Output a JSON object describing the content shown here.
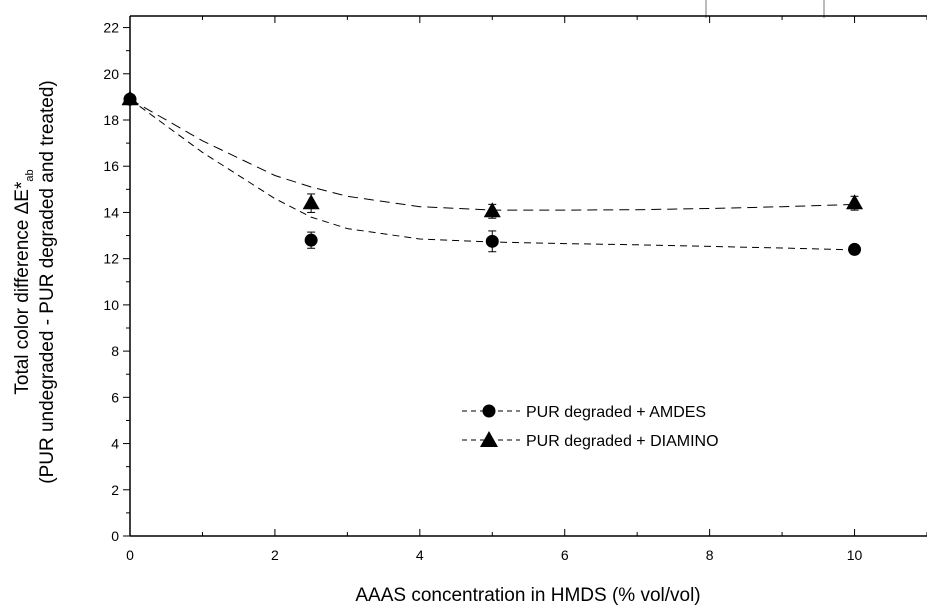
{
  "chart_data": {
    "type": "scatter",
    "xlabel": "AAAS concentration in HMDS (% vol/vol)",
    "ylabel": {
      "line1_prefix": "Total color difference ",
      "line1_symbol": "ΔE*",
      "line1_subscript": "ab",
      "line2": "(PUR undegraded - PUR degraded and treated)"
    },
    "xlim": [
      0,
      11
    ],
    "ylim": [
      0,
      22.5
    ],
    "xticks": [
      0,
      2,
      4,
      6,
      8,
      10
    ],
    "yticks": [
      0,
      2,
      4,
      6,
      8,
      10,
      12,
      14,
      16,
      18,
      20,
      22
    ],
    "grid": false,
    "legend_position": "lower-right",
    "series": [
      {
        "name": "PUR degraded + AMDES",
        "marker": "circle",
        "line_style": "dashed",
        "x": [
          0,
          2.5,
          5,
          10
        ],
        "y": [
          18.9,
          12.8,
          12.75,
          12.4
        ],
        "err": [
          0.2,
          0.35,
          0.45,
          0.2
        ],
        "fit": [
          [
            0,
            18.9
          ],
          [
            1,
            16.6
          ],
          [
            2,
            14.6
          ],
          [
            2.5,
            13.8
          ],
          [
            3,
            13.3
          ],
          [
            4,
            12.85
          ],
          [
            5,
            12.72
          ],
          [
            6,
            12.65
          ],
          [
            7,
            12.6
          ],
          [
            8,
            12.53
          ],
          [
            9,
            12.46
          ],
          [
            10,
            12.38
          ]
        ]
      },
      {
        "name": "PUR degraded + DIAMINO",
        "marker": "triangle",
        "line_style": "dashed",
        "x": [
          0,
          2.5,
          5,
          10
        ],
        "y": [
          18.9,
          14.4,
          14.05,
          14.4
        ],
        "err": [
          0.2,
          0.4,
          0.3,
          0.3
        ],
        "fit": [
          [
            0,
            18.9
          ],
          [
            1,
            17.1
          ],
          [
            2,
            15.6
          ],
          [
            2.5,
            15.1
          ],
          [
            3,
            14.7
          ],
          [
            4,
            14.25
          ],
          [
            5,
            14.1
          ],
          [
            6,
            14.1
          ],
          [
            7,
            14.12
          ],
          [
            8,
            14.17
          ],
          [
            9,
            14.25
          ],
          [
            10,
            14.35
          ]
        ]
      }
    ]
  },
  "colors": {
    "ink": "#000000",
    "background": "#ffffff",
    "corner_marks": "#bbbbbb"
  }
}
